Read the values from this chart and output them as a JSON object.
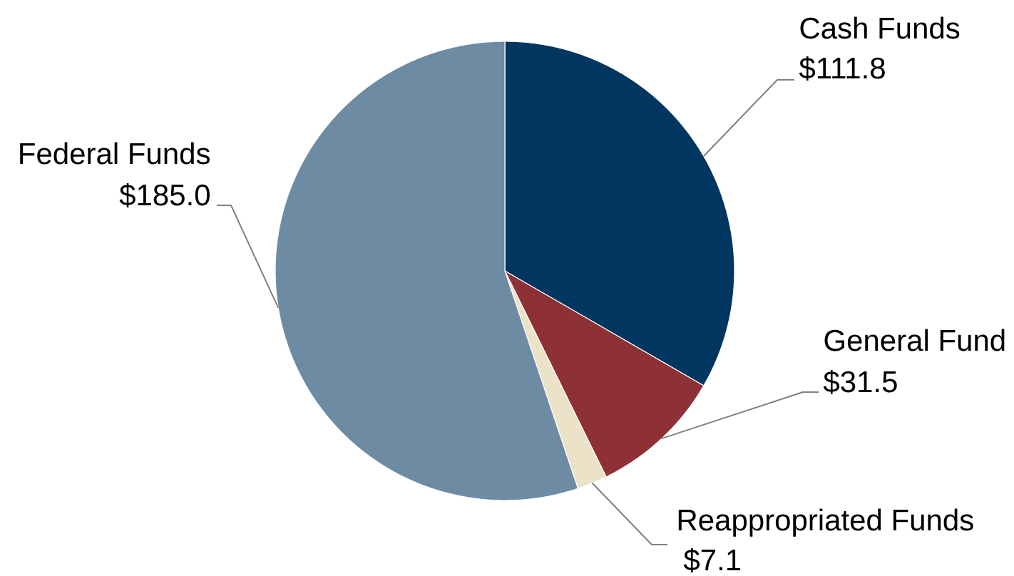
{
  "chart_data": {
    "type": "pie",
    "categories": [
      "Cash Funds",
      "General Fund",
      "Reappropriated Funds",
      "Federal Funds"
    ],
    "values": [
      111.8,
      31.5,
      7.1,
      185.0
    ],
    "colors": [
      "#003660",
      "#8e3136",
      "#ebe2c8",
      "#6d8ca4"
    ],
    "value_labels": [
      "$111.8",
      "$31.5",
      "$7.1",
      "$185.0"
    ]
  }
}
